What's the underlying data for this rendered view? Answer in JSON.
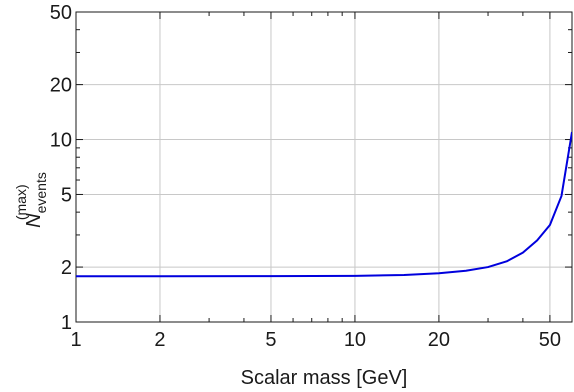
{
  "chart_data": {
    "type": "line",
    "x_scale": "log",
    "y_scale": "log",
    "grid": true,
    "xlim": [
      1,
      60
    ],
    "ylim": [
      1,
      50
    ],
    "x_ticks": [
      1,
      2,
      5,
      10,
      20,
      50
    ],
    "x_tick_labels": [
      "1",
      "2",
      "5",
      "10",
      "20",
      "50"
    ],
    "y_ticks": [
      1,
      2,
      5,
      10,
      20,
      50
    ],
    "y_tick_labels": [
      "1",
      "2",
      "5",
      "10",
      "20",
      "50"
    ],
    "xlabel": "Scalar mass [GeV]",
    "ylabel": {
      "symbol": "N",
      "subscript": "events",
      "superscript": "(max)"
    },
    "series": [
      {
        "color": "#0000dd",
        "x": [
          1,
          2,
          5,
          10,
          15,
          20,
          25,
          30,
          35,
          40,
          45,
          50,
          55,
          60
        ],
        "y": [
          1.78,
          1.78,
          1.785,
          1.79,
          1.81,
          1.85,
          1.91,
          2.0,
          2.15,
          2.4,
          2.8,
          3.4,
          4.9,
          11
        ]
      }
    ]
  }
}
